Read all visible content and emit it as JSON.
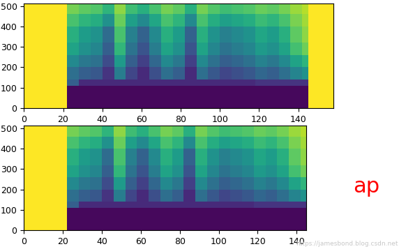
{
  "chart_data": [
    {
      "type": "heatmap",
      "x_edges": [
        0,
        22,
        28,
        34,
        40,
        46,
        52,
        58,
        64,
        70,
        76,
        82,
        88,
        94,
        100,
        106,
        112,
        118,
        124,
        130,
        136,
        142,
        145,
        158
      ],
      "y_edges": [
        0,
        110,
        140,
        200,
        260,
        320,
        400,
        460,
        512
      ],
      "cells": [
        [
          1,
          0.02,
          0.02,
          0.02,
          0.02,
          0.02,
          0.02,
          0.02,
          0.02,
          0.02,
          0.02,
          0.02,
          0.02,
          0.02,
          0.02,
          0.02,
          0.02,
          0.02,
          0.02,
          0.02,
          0.02,
          0.02,
          1
        ],
        [
          1,
          0.3,
          0.12,
          0.12,
          0.12,
          0.12,
          0.12,
          0.12,
          0.12,
          0.12,
          0.12,
          0.12,
          0.12,
          0.12,
          0.12,
          0.12,
          0.12,
          0.15,
          0.15,
          0.15,
          0.15,
          0.15,
          1
        ],
        [
          1,
          0.36,
          0.3,
          0.27,
          0.15,
          0.42,
          0.21,
          0.12,
          0.24,
          0.36,
          0.3,
          0.12,
          0.36,
          0.27,
          0.21,
          0.24,
          0.27,
          0.33,
          0.3,
          0.36,
          0.45,
          0.51,
          1
        ],
        [
          1,
          0.47,
          0.4,
          0.37,
          0.23,
          0.54,
          0.3,
          0.19,
          0.33,
          0.47,
          0.4,
          0.19,
          0.47,
          0.37,
          0.3,
          0.33,
          0.37,
          0.44,
          0.4,
          0.47,
          0.58,
          0.65,
          1
        ],
        [
          1,
          0.58,
          0.5,
          0.46,
          0.3,
          0.66,
          0.38,
          0.26,
          0.42,
          0.58,
          0.5,
          0.26,
          0.58,
          0.46,
          0.38,
          0.42,
          0.46,
          0.54,
          0.5,
          0.58,
          0.7,
          0.78,
          1
        ],
        [
          1,
          0.63,
          0.55,
          0.51,
          0.35,
          0.71,
          0.43,
          0.31,
          0.47,
          0.63,
          0.55,
          0.31,
          0.63,
          0.51,
          0.43,
          0.47,
          0.51,
          0.59,
          0.55,
          0.63,
          0.75,
          0.83,
          1
        ],
        [
          1,
          0.71,
          0.65,
          0.62,
          0.5,
          0.77,
          0.56,
          0.47,
          0.59,
          0.71,
          0.65,
          0.47,
          0.71,
          0.62,
          0.56,
          0.59,
          0.62,
          0.68,
          0.65,
          0.71,
          0.8,
          0.86,
          1
        ],
        [
          1,
          0.79,
          0.75,
          0.73,
          0.65,
          0.83,
          0.69,
          0.63,
          0.71,
          0.79,
          0.75,
          0.63,
          0.79,
          0.73,
          0.69,
          0.71,
          0.73,
          0.77,
          0.75,
          0.79,
          0.85,
          0.89,
          1
        ]
      ],
      "clim": [
        0,
        1
      ],
      "xlim": [
        0,
        158
      ],
      "xticks": [
        0,
        20,
        40,
        60,
        80,
        100,
        120,
        140
      ],
      "ylim": [
        0,
        512
      ],
      "yticks": [
        0,
        100,
        200,
        300,
        400,
        500
      ]
    },
    {
      "type": "heatmap",
      "x_edges": [
        0,
        22,
        28,
        34,
        40,
        46,
        52,
        58,
        64,
        70,
        76,
        82,
        88,
        94,
        100,
        106,
        112,
        118,
        124,
        130,
        136,
        142,
        145
      ],
      "y_edges": [
        0,
        110,
        140,
        200,
        260,
        320,
        400,
        460,
        512
      ],
      "cells": [
        [
          1,
          0.02,
          0.02,
          0.02,
          0.02,
          0.02,
          0.02,
          0.02,
          0.02,
          0.02,
          0.02,
          0.02,
          0.02,
          0.02,
          0.02,
          0.02,
          0.02,
          0.02,
          0.02,
          0.02,
          0.02,
          0.02
        ],
        [
          1,
          0.3,
          0.12,
          0.12,
          0.12,
          0.12,
          0.12,
          0.12,
          0.12,
          0.12,
          0.12,
          0.12,
          0.12,
          0.12,
          0.12,
          0.12,
          0.12,
          0.15,
          0.15,
          0.15,
          0.15,
          0.15
        ],
        [
          1,
          0.36,
          0.3,
          0.27,
          0.15,
          0.42,
          0.21,
          0.12,
          0.24,
          0.36,
          0.3,
          0.12,
          0.36,
          0.27,
          0.21,
          0.24,
          0.27,
          0.33,
          0.3,
          0.36,
          0.45,
          0.51
        ],
        [
          1,
          0.47,
          0.4,
          0.37,
          0.23,
          0.54,
          0.3,
          0.19,
          0.33,
          0.47,
          0.4,
          0.19,
          0.47,
          0.37,
          0.3,
          0.33,
          0.37,
          0.44,
          0.4,
          0.47,
          0.58,
          0.65
        ],
        [
          1,
          0.58,
          0.5,
          0.46,
          0.3,
          0.66,
          0.38,
          0.26,
          0.42,
          0.58,
          0.5,
          0.26,
          0.58,
          0.46,
          0.38,
          0.42,
          0.46,
          0.54,
          0.5,
          0.58,
          0.7,
          0.78
        ],
        [
          1,
          0.63,
          0.55,
          0.51,
          0.35,
          0.71,
          0.43,
          0.31,
          0.47,
          0.63,
          0.55,
          0.31,
          0.63,
          0.51,
          0.43,
          0.47,
          0.51,
          0.59,
          0.55,
          0.63,
          0.75,
          0.83
        ],
        [
          1,
          0.71,
          0.65,
          0.62,
          0.5,
          0.77,
          0.56,
          0.47,
          0.59,
          0.71,
          0.65,
          0.47,
          0.71,
          0.62,
          0.56,
          0.59,
          0.62,
          0.68,
          0.65,
          0.71,
          0.8,
          0.86
        ],
        [
          1,
          0.79,
          0.75,
          0.73,
          0.65,
          0.83,
          0.69,
          0.63,
          0.71,
          0.79,
          0.75,
          0.63,
          0.79,
          0.73,
          0.69,
          0.71,
          0.73,
          0.77,
          0.75,
          0.79,
          0.85,
          0.89
        ]
      ],
      "clim": [
        0,
        1
      ],
      "xlim": [
        0,
        145
      ],
      "xticks": [
        0,
        20,
        40,
        60,
        80,
        100,
        120,
        140
      ],
      "ylim": [
        0,
        512
      ],
      "yticks": [
        0,
        100,
        200,
        300,
        400,
        500
      ],
      "annotations": [
        "ap",
        "https://jamesbond.blog.csdn.net"
      ]
    }
  ]
}
